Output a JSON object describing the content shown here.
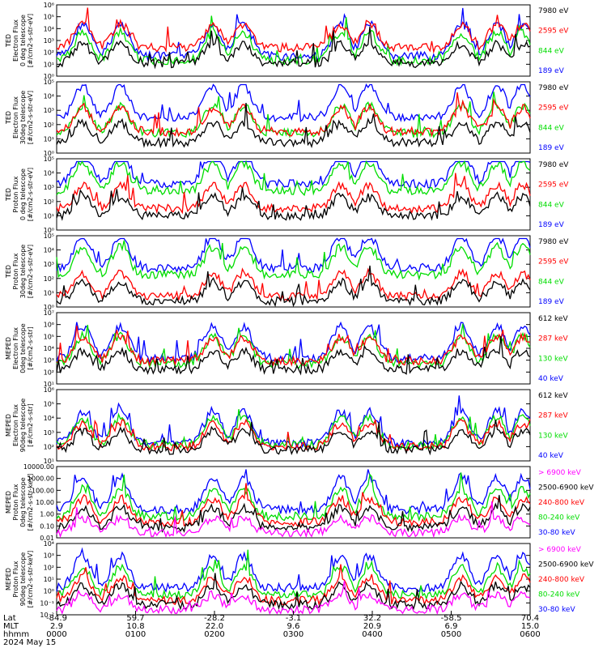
{
  "chart_data": {
    "type": "line",
    "title": "",
    "panels": [
      {
        "id": "ted-electron-0deg",
        "ylabel": [
          "TED",
          "Electron Flux",
          "0 deg telescope",
          "[#/cm2-s-str-eV]"
        ],
        "y_ticks": [
          "10⁶",
          "10⁵",
          "10⁴",
          "10³",
          "10²",
          "10¹",
          "10⁰"
        ],
        "series": [
          {
            "name": "7980 eV",
            "color": "#000000",
            "base": 0.82
          },
          {
            "name": "2595 eV",
            "color": "#ff0000",
            "base": 0.6
          },
          {
            "name": "844 eV",
            "color": "#00dd00",
            "base": 0.78
          },
          {
            "name": "189 eV",
            "color": "#0000ff",
            "base": 0.72
          }
        ]
      },
      {
        "id": "ted-electron-30deg",
        "ylabel": [
          "TED",
          "Electron Flux",
          "30deg telescope",
          "[#/cm2-s-str-eV]"
        ],
        "y_ticks": [
          "10⁵",
          "10⁴",
          "10³",
          "10²",
          "10¹",
          "10⁰"
        ],
        "series": [
          {
            "name": "7980 eV",
            "color": "#000000",
            "base": 0.85
          },
          {
            "name": "2595 eV",
            "color": "#ff0000",
            "base": 0.7
          },
          {
            "name": "844 eV",
            "color": "#00dd00",
            "base": 0.72
          },
          {
            "name": "189 eV",
            "color": "#0000ff",
            "base": 0.5
          }
        ]
      },
      {
        "id": "ted-proton-0deg",
        "ylabel": [
          "TED",
          "Proton Flux",
          "0 deg telescope",
          "[#/cm2-s-str-eV]"
        ],
        "y_ticks": [
          "10⁵",
          "10⁴",
          "10³",
          "10²",
          "10¹",
          "10⁰"
        ],
        "series": [
          {
            "name": "7980 eV",
            "color": "#000000",
            "base": 0.8
          },
          {
            "name": "2595 eV",
            "color": "#ff0000",
            "base": 0.7
          },
          {
            "name": "844 eV",
            "color": "#00dd00",
            "base": 0.45
          },
          {
            "name": "189 eV",
            "color": "#0000ff",
            "base": 0.35
          }
        ]
      },
      {
        "id": "ted-proton-30deg",
        "ylabel": [
          "TED",
          "Proton Flux",
          "30deg telescope",
          "[#/cm2-s-str-eV]"
        ],
        "y_ticks": [
          "10⁵",
          "10⁴",
          "10³",
          "10²",
          "10¹",
          "10⁰"
        ],
        "series": [
          {
            "name": "7980 eV",
            "color": "#000000",
            "base": 0.92
          },
          {
            "name": "2595 eV",
            "color": "#ff0000",
            "base": 0.85
          },
          {
            "name": "844 eV",
            "color": "#00dd00",
            "base": 0.55
          },
          {
            "name": "189 eV",
            "color": "#0000ff",
            "base": 0.45
          }
        ]
      },
      {
        "id": "meped-electron-0deg",
        "ylabel": [
          "MEPED",
          "Electron Flux",
          "0deg telescope",
          "[#/cm2-s-str]"
        ],
        "y_ticks": [
          "10⁷",
          "10⁶",
          "10⁵",
          "10⁴",
          "10³",
          "10²",
          "10¹"
        ],
        "series": [
          {
            "name": "612 keV",
            "color": "#000000",
            "base": 0.8
          },
          {
            "name": "287 keV",
            "color": "#ff0000",
            "base": 0.68
          },
          {
            "name": "130 keV",
            "color": "#00dd00",
            "base": 0.72
          },
          {
            "name": "40 keV",
            "color": "#0000ff",
            "base": 0.64
          }
        ]
      },
      {
        "id": "meped-electron-90deg",
        "ylabel": [
          "MEPED",
          "Electron Flux",
          "90deg telescope",
          "[#/cm2-s-str]"
        ],
        "y_ticks": [
          "10⁶",
          "10⁵",
          "10⁴",
          "10³",
          "10²",
          "10¹"
        ],
        "series": [
          {
            "name": "612 keV",
            "color": "#000000",
            "base": 0.85
          },
          {
            "name": "287 keV",
            "color": "#ff0000",
            "base": 0.8
          },
          {
            "name": "130 keV",
            "color": "#00dd00",
            "base": 0.78
          },
          {
            "name": "40 keV",
            "color": "#0000ff",
            "base": 0.75
          }
        ]
      },
      {
        "id": "meped-proton-0deg",
        "ylabel": [
          "MEPED",
          "Proton Flux",
          "0deg telescope",
          "[#/cm2-s-str-keV]"
        ],
        "y_ticks": [
          "10000.00",
          "1000.00",
          "100.00",
          "10.00",
          "1.00",
          "0.10",
          "0.01"
        ],
        "series": [
          {
            "name": "> 6900 keV",
            "color": "#ff00ff",
            "base": 0.93
          },
          {
            "name": "2500-6900 keV",
            "color": "#000000",
            "base": 0.85
          },
          {
            "name": "240-800 keV",
            "color": "#ff0000",
            "base": 0.78
          },
          {
            "name": "80-240 keV",
            "color": "#00dd00",
            "base": 0.7
          },
          {
            "name": "30-80 keV",
            "color": "#0000ff",
            "base": 0.6
          }
        ]
      },
      {
        "id": "meped-proton-90deg",
        "ylabel": [
          "MEPED",
          "Proton Flux",
          "90deg telescope",
          "[#/cm2-s-str-keV]"
        ],
        "y_ticks": [
          "10⁴",
          "10³",
          "10²",
          "10¹",
          "10⁰",
          "10⁻¹",
          "10⁻²"
        ],
        "series": [
          {
            "name": "> 6900 keV",
            "color": "#ff00ff",
            "base": 0.93
          },
          {
            "name": "2500-6900 keV",
            "color": "#000000",
            "base": 0.86
          },
          {
            "name": "240-800 keV",
            "color": "#ff0000",
            "base": 0.8
          },
          {
            "name": "80-240 keV",
            "color": "#00dd00",
            "base": 0.72
          },
          {
            "name": "30-80 keV",
            "color": "#0000ff",
            "base": 0.62
          }
        ]
      }
    ],
    "x_axis": {
      "labels": [
        "Lat",
        "MLT",
        "hhmm"
      ],
      "ticks": [
        {
          "lat": "-84.9",
          "mlt": "2.9",
          "hhmm": "0000"
        },
        {
          "lat": "59.7",
          "mlt": "10.8",
          "hhmm": "0100"
        },
        {
          "lat": "-28.2",
          "mlt": "22.0",
          "hhmm": "0200"
        },
        {
          "lat": "-3.1",
          "mlt": "9.6",
          "hhmm": "0300"
        },
        {
          "lat": "32.2",
          "mlt": "20.9",
          "hhmm": "0400"
        },
        {
          "lat": "-58.5",
          "mlt": "6.9",
          "hhmm": "0500"
        },
        {
          "lat": "70.4",
          "mlt": "15.0",
          "hhmm": "0600"
        }
      ],
      "date": "2024 May 15"
    }
  }
}
